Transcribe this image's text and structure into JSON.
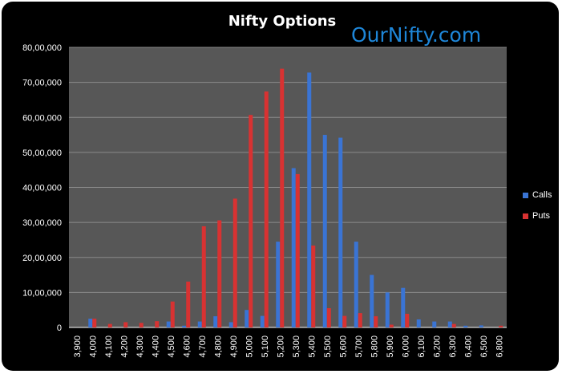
{
  "watermark": "OurNifty.com",
  "colors": {
    "calls": "#3a74d4",
    "puts": "#d83232",
    "plot_bg": "#575757",
    "frame_bg": "#000000",
    "gridline": "#8a8a8a"
  },
  "chart_data": {
    "type": "bar",
    "title": "Nifty Options",
    "xlabel": "",
    "ylabel": "",
    "ylim": [
      0,
      8000000
    ],
    "y_ticks": [
      "0",
      "10,00,000",
      "20,00,000",
      "30,00,000",
      "40,00,000",
      "50,00,000",
      "60,00,000",
      "70,00,000",
      "80,00,000"
    ],
    "categories": [
      "3,900",
      "4,000",
      "4,100",
      "4,200",
      "4,300",
      "4,400",
      "4,500",
      "4,600",
      "4,700",
      "4,800",
      "4,900",
      "5,000",
      "5,100",
      "5,200",
      "5,300",
      "5,400",
      "5,500",
      "5,600",
      "5,700",
      "5,800",
      "5,900",
      "6,000",
      "6,100",
      "6,200",
      "6,300",
      "6,400",
      "6,500",
      "6,800"
    ],
    "series": [
      {
        "name": "Calls",
        "values": [
          0,
          250000,
          0,
          0,
          0,
          0,
          170000,
          50000,
          170000,
          320000,
          150000,
          500000,
          330000,
          2450000,
          4550000,
          7280000,
          5500000,
          5420000,
          2450000,
          1500000,
          1000000,
          1130000,
          230000,
          170000,
          170000,
          50000,
          60000,
          0
        ]
      },
      {
        "name": "Puts",
        "values": [
          0,
          250000,
          100000,
          150000,
          130000,
          180000,
          740000,
          1310000,
          2890000,
          3060000,
          3680000,
          6070000,
          6740000,
          7390000,
          4380000,
          2340000,
          550000,
          330000,
          410000,
          320000,
          80000,
          390000,
          0,
          0,
          100000,
          0,
          0,
          50000
        ]
      }
    ],
    "grid": true,
    "legend_position": "right"
  }
}
